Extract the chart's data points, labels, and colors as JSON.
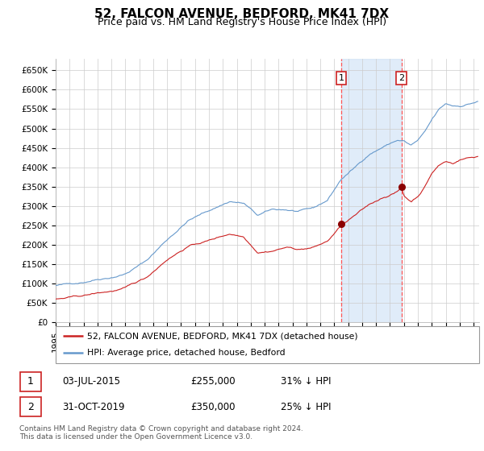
{
  "title": "52, FALCON AVENUE, BEDFORD, MK41 7DX",
  "subtitle": "Price paid vs. HM Land Registry's House Price Index (HPI)",
  "title_fontsize": 11,
  "subtitle_fontsize": 9,
  "ylim": [
    0,
    680000
  ],
  "yticks": [
    0,
    50000,
    100000,
    150000,
    200000,
    250000,
    300000,
    350000,
    400000,
    450000,
    500000,
    550000,
    600000,
    650000
  ],
  "ytick_labels": [
    "£0",
    "£50K",
    "£100K",
    "£150K",
    "£200K",
    "£250K",
    "£300K",
    "£350K",
    "£400K",
    "£450K",
    "£500K",
    "£550K",
    "£600K",
    "£650K"
  ],
  "hpi_color": "#6699cc",
  "price_color": "#cc2222",
  "background_color": "#ffffff",
  "grid_color": "#cccccc",
  "marker_color": "#8b0000",
  "shade_color": "#cce0f5",
  "vline_color": "#ff5555",
  "annotation_box_edge": "#cc2222",
  "event1_year": 2015.5,
  "event2_year": 2019.83,
  "event1_hpi_val": 255000,
  "event2_hpi_val": 350000,
  "legend_line1": "52, FALCON AVENUE, BEDFORD, MK41 7DX (detached house)",
  "legend_line2": "HPI: Average price, detached house, Bedford",
  "table_row1": [
    "1",
    "03-JUL-2015",
    "£255,000",
    "31% ↓ HPI"
  ],
  "table_row2": [
    "2",
    "31-OCT-2019",
    "£350,000",
    "25% ↓ HPI"
  ],
  "footnote": "Contains HM Land Registry data © Crown copyright and database right 2024.\nThis data is licensed under the Open Government Licence v3.0.",
  "xstart": 1995.0,
  "xend": 2025.4
}
